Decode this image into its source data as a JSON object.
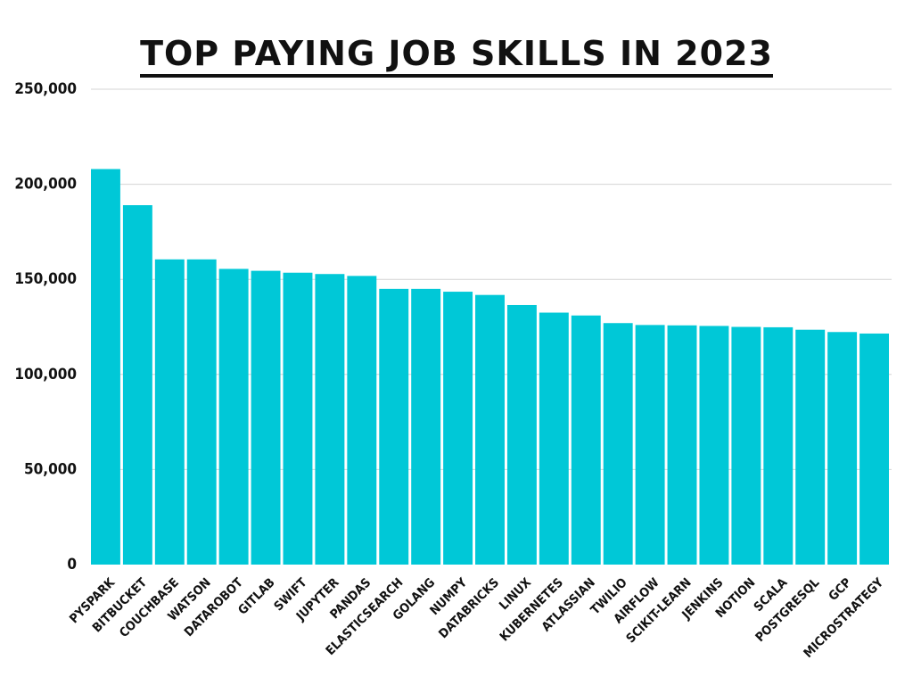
{
  "chart_data": {
    "type": "bar",
    "title": "TOP PAYING JOB SKILLS IN 2023",
    "xlabel": "",
    "ylabel": "",
    "ylim": [
      0,
      250000
    ],
    "yticks": [
      0,
      50000,
      100000,
      150000,
      200000,
      250000
    ],
    "ytick_labels": [
      "0",
      "50,000",
      "100,000",
      "150,000",
      "200,000",
      "250,000"
    ],
    "grid": true,
    "bar_color": "#00c8d7",
    "categories": [
      "PYSPARK",
      "BITBUCKET",
      "COUCHBASE",
      "WATSON",
      "DATAROBOT",
      "GITLAB",
      "SWIFT",
      "JUPYTER",
      "PANDAS",
      "ELASTICSEARCH",
      "GOLANG",
      "NUMPY",
      "DATABRICKS",
      "LINUX",
      "KUBERNETES",
      "ATLASSIAN",
      "TWILIO",
      "AIRFLOW",
      "SCIKIT-LEARN",
      "JENKINS",
      "NOTION",
      "SCALA",
      "POSTGRESQL",
      "GCP",
      "MICROSTRATEGY"
    ],
    "values": [
      208000,
      189000,
      160500,
      160500,
      155500,
      154500,
      153500,
      152800,
      151800,
      145000,
      145000,
      143500,
      141800,
      136500,
      132500,
      131000,
      127000,
      126000,
      125800,
      125500,
      125000,
      124800,
      123500,
      122300,
      121500
    ]
  }
}
